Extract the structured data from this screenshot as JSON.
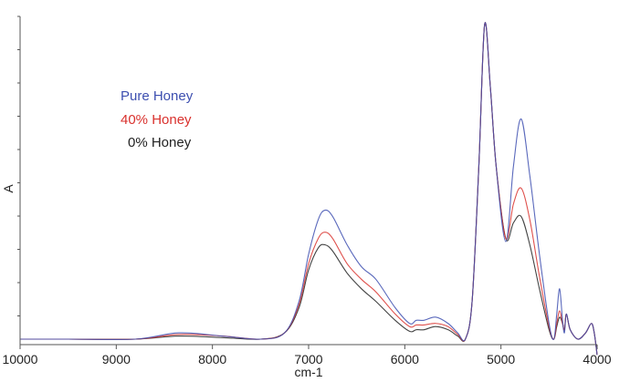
{
  "chart_data": {
    "type": "line",
    "title": "",
    "xlabel": "cm-1",
    "ylabel": "A",
    "xlim": [
      10000,
      4000
    ],
    "x_reversed": true,
    "ylim": [
      0,
      1.02
    ],
    "y_ticks_labeled": false,
    "grid": false,
    "legend_position": "upper-left (inside plot)",
    "x_ticks": [
      10000,
      9000,
      8000,
      7000,
      6000,
      5000,
      4000
    ],
    "x_tick_labels": [
      "10000",
      "9000",
      "8000",
      "7000",
      "6000",
      "5000",
      "4000"
    ],
    "x": [
      10000,
      9500,
      8800,
      8350,
      7900,
      7500,
      7250,
      7100,
      7000,
      6900,
      6830,
      6750,
      6600,
      6450,
      6300,
      6100,
      5950,
      5880,
      5800,
      5680,
      5550,
      5450,
      5370,
      5300,
      5230,
      5170,
      5110,
      5050,
      4950,
      4870,
      4790,
      4700,
      4600,
      4500,
      4450,
      4420,
      4390,
      4360,
      4340,
      4320,
      4280,
      4200,
      4120,
      4060,
      4030,
      4000
    ],
    "series": [
      {
        "name": "Pure Honey",
        "color": "#3d4fb0",
        "values": [
          0.0,
          0.0,
          0.0,
          0.02,
          0.01,
          0.0,
          0.02,
          0.12,
          0.27,
          0.38,
          0.41,
          0.39,
          0.3,
          0.23,
          0.19,
          0.1,
          0.05,
          0.06,
          0.06,
          0.07,
          0.05,
          0.02,
          0.0,
          0.12,
          0.55,
          1.0,
          0.8,
          0.55,
          0.31,
          0.55,
          0.7,
          0.52,
          0.27,
          0.05,
          0.0,
          0.08,
          0.16,
          0.06,
          0.02,
          0.08,
          0.03,
          0.0,
          0.02,
          0.05,
          0.02,
          -0.05
        ]
      },
      {
        "name": "40% Honey",
        "color": "#d9312d",
        "values": [
          0.0,
          0.0,
          0.0,
          0.015,
          0.01,
          0.0,
          0.02,
          0.11,
          0.24,
          0.32,
          0.34,
          0.32,
          0.24,
          0.19,
          0.15,
          0.08,
          0.04,
          0.045,
          0.045,
          0.05,
          0.04,
          0.015,
          0.0,
          0.12,
          0.55,
          1.0,
          0.8,
          0.55,
          0.32,
          0.43,
          0.48,
          0.38,
          0.2,
          0.04,
          0.0,
          0.05,
          0.09,
          0.05,
          0.03,
          0.08,
          0.03,
          0.0,
          0.02,
          0.05,
          0.02,
          -0.05
        ]
      },
      {
        "name": "0% Honey",
        "color": "#222222",
        "values": [
          0.0,
          0.0,
          0.0,
          0.01,
          0.005,
          0.0,
          0.02,
          0.1,
          0.22,
          0.29,
          0.3,
          0.28,
          0.21,
          0.16,
          0.12,
          0.06,
          0.025,
          0.03,
          0.03,
          0.04,
          0.03,
          0.01,
          0.0,
          0.12,
          0.55,
          1.0,
          0.8,
          0.55,
          0.32,
          0.37,
          0.39,
          0.3,
          0.16,
          0.03,
          0.0,
          0.04,
          0.07,
          0.05,
          0.03,
          0.08,
          0.03,
          0.0,
          0.02,
          0.05,
          0.02,
          -0.05
        ]
      }
    ],
    "annotations": []
  },
  "legend": {
    "items": [
      {
        "label": "Pure Honey",
        "color": "#3d4fb0"
      },
      {
        "label": "40% Honey",
        "color": "#d9312d"
      },
      {
        "label": "0% Honey",
        "color": "#222222"
      }
    ]
  },
  "axes": {
    "x_label": "cm-1",
    "y_label": "A",
    "x_tick_labels": [
      "10000",
      "9000",
      "8000",
      "7000",
      "6000",
      "5000",
      "4000"
    ]
  }
}
